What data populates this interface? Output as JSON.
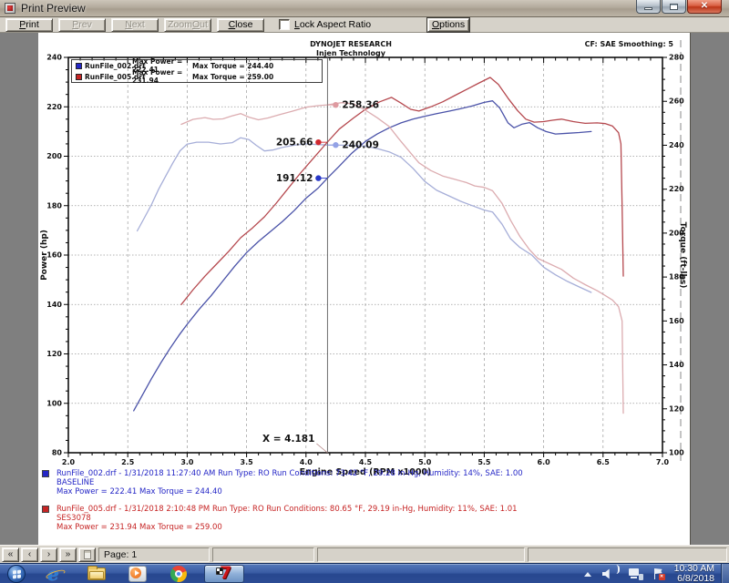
{
  "window": {
    "title": "Print Preview"
  },
  "toolbar": {
    "buttons": [
      {
        "label": "Print",
        "accel": 0,
        "enabled": true
      },
      {
        "label": "Prev",
        "accel": 0,
        "enabled": false
      },
      {
        "label": "Next",
        "accel": 0,
        "enabled": false
      },
      {
        "label": "Zoom Out",
        "accel": 5,
        "enabled": false
      },
      {
        "label": "Close",
        "accel": 0,
        "enabled": true
      }
    ],
    "lock_aspect_label": "Lock Aspect Ratio",
    "lock_aspect_checked": false,
    "options_label": "Options",
    "options_accel": 0
  },
  "page_header": {
    "line1": "DYNOJET RESEARCH",
    "line2": "Injen Technology",
    "right": "CF: SAE  Smoothing: 5"
  },
  "legend": {
    "rows": [
      {
        "color": "#2426c6",
        "file": "RunFile_002.drf",
        "power": "Max Power = 222.41",
        "torque": "Max Torque = 244.40"
      },
      {
        "color": "#c62424",
        "file": "RunFile_005.drf",
        "power": "Max Power = 231.94",
        "torque": "Max Torque = 259.00"
      }
    ]
  },
  "chart_data": {
    "type": "line",
    "title": "DYNOJET RESEARCH",
    "x_axis": {
      "label": "Engine Speed (RPM x1000)",
      "min": 2.0,
      "max": 7.0,
      "tick_labels": [
        "2.0",
        "2.5",
        "3.0",
        "3.5",
        "4.0",
        "4.5",
        "5.0",
        "5.5",
        "6.0",
        "6.5",
        "7.0"
      ],
      "minor_step": 0.1
    },
    "y_left": {
      "label": "Power (hp)",
      "min": 80,
      "max": 240,
      "tick_labels": [
        "240",
        "220",
        "200",
        "180",
        "160",
        "140",
        "120",
        "100",
        "80"
      ],
      "minor_step": 5
    },
    "y_right": {
      "label": "Torque (ft-lbs)",
      "min": 100,
      "max": 280,
      "tick_labels": [
        "280",
        "260",
        "240",
        "220",
        "200",
        "180",
        "160",
        "140",
        "120",
        "100"
      ],
      "minor_step": 5
    },
    "grid": true,
    "cursor": {
      "rpm": 4.181,
      "label": "X = 4.181"
    },
    "annotations": [
      {
        "label": "258.36",
        "axis": "right",
        "value": 258.36,
        "side": "right",
        "color": "#de9aa0"
      },
      {
        "label": "205.66",
        "axis": "left",
        "value": 205.66,
        "side": "left",
        "color": "#d02830"
      },
      {
        "label": "240.09",
        "axis": "right",
        "value": 240.09,
        "side": "right",
        "color": "#93a2e6"
      },
      {
        "label": "191.12",
        "axis": "left",
        "value": 191.12,
        "side": "left",
        "color": "#2838c8"
      }
    ],
    "series": [
      {
        "name": "power-runfile-002",
        "axis": "left",
        "color": "#4a52a8",
        "points": [
          [
            2.55,
            97
          ],
          [
            2.62,
            103
          ],
          [
            2.7,
            110
          ],
          [
            2.78,
            116.5
          ],
          [
            2.86,
            122.5
          ],
          [
            2.93,
            127.5
          ],
          [
            3.0,
            132
          ],
          [
            3.1,
            138
          ],
          [
            3.2,
            143.5
          ],
          [
            3.3,
            149.5
          ],
          [
            3.4,
            155.5
          ],
          [
            3.5,
            161
          ],
          [
            3.6,
            165.5
          ],
          [
            3.7,
            169.5
          ],
          [
            3.8,
            173.5
          ],
          [
            3.9,
            178
          ],
          [
            4.0,
            183
          ],
          [
            4.1,
            187
          ],
          [
            4.18,
            191.1
          ],
          [
            4.28,
            196
          ],
          [
            4.38,
            201
          ],
          [
            4.5,
            206
          ],
          [
            4.6,
            209
          ],
          [
            4.7,
            211.5
          ],
          [
            4.8,
            213.5
          ],
          [
            4.9,
            215
          ],
          [
            5.0,
            216.2
          ],
          [
            5.1,
            217.2
          ],
          [
            5.2,
            218.2
          ],
          [
            5.3,
            219.2
          ],
          [
            5.4,
            220.4
          ],
          [
            5.5,
            221.8
          ],
          [
            5.57,
            222.4
          ],
          [
            5.63,
            219.5
          ],
          [
            5.7,
            213.5
          ],
          [
            5.75,
            211.5
          ],
          [
            5.82,
            213
          ],
          [
            5.88,
            213.6
          ],
          [
            5.95,
            211.5
          ],
          [
            6.02,
            210
          ],
          [
            6.1,
            209
          ],
          [
            6.2,
            209.3
          ],
          [
            6.3,
            209.6
          ],
          [
            6.4,
            210
          ]
        ]
      },
      {
        "name": "torque-runfile-002",
        "axis": "right",
        "color": "#a6aed8",
        "points": [
          [
            2.58,
            201
          ],
          [
            2.64,
            207
          ],
          [
            2.7,
            213
          ],
          [
            2.76,
            220
          ],
          [
            2.82,
            226
          ],
          [
            2.88,
            232
          ],
          [
            2.94,
            237.5
          ],
          [
            3.0,
            240.5
          ],
          [
            3.08,
            241.4
          ],
          [
            3.18,
            241.4
          ],
          [
            3.28,
            240.6
          ],
          [
            3.38,
            241.2
          ],
          [
            3.45,
            243.4
          ],
          [
            3.52,
            242.6
          ],
          [
            3.58,
            240
          ],
          [
            3.65,
            237.4
          ],
          [
            3.72,
            237.8
          ],
          [
            3.8,
            239
          ],
          [
            3.9,
            240
          ],
          [
            4.0,
            240.6
          ],
          [
            4.1,
            240.3
          ],
          [
            4.18,
            240.1
          ],
          [
            4.3,
            240
          ],
          [
            4.4,
            239.9
          ],
          [
            4.5,
            239.6
          ],
          [
            4.6,
            238.5
          ],
          [
            4.7,
            237
          ],
          [
            4.8,
            234.5
          ],
          [
            4.9,
            229.5
          ],
          [
            5.0,
            223.5
          ],
          [
            5.1,
            219.5
          ],
          [
            5.2,
            217
          ],
          [
            5.3,
            214.5
          ],
          [
            5.4,
            212.5
          ],
          [
            5.5,
            210.5
          ],
          [
            5.57,
            209.6
          ],
          [
            5.65,
            204
          ],
          [
            5.72,
            197.5
          ],
          [
            5.8,
            193.5
          ],
          [
            5.9,
            190
          ],
          [
            6.0,
            184.5
          ],
          [
            6.1,
            181
          ],
          [
            6.2,
            178
          ],
          [
            6.3,
            175.5
          ],
          [
            6.4,
            173
          ]
        ]
      },
      {
        "name": "power-runfile-005",
        "axis": "left",
        "color": "#b5484e",
        "points": [
          [
            2.95,
            140
          ],
          [
            3.05,
            146
          ],
          [
            3.15,
            151.5
          ],
          [
            3.25,
            156.5
          ],
          [
            3.35,
            161.5
          ],
          [
            3.45,
            167
          ],
          [
            3.55,
            171
          ],
          [
            3.65,
            175.5
          ],
          [
            3.75,
            181
          ],
          [
            3.85,
            187
          ],
          [
            3.95,
            193
          ],
          [
            4.05,
            198.5
          ],
          [
            4.18,
            205.7
          ],
          [
            4.28,
            211
          ],
          [
            4.4,
            215.5
          ],
          [
            4.5,
            219
          ],
          [
            4.62,
            222
          ],
          [
            4.72,
            223.8
          ],
          [
            4.8,
            221.5
          ],
          [
            4.88,
            219
          ],
          [
            4.95,
            218.3
          ],
          [
            5.05,
            220
          ],
          [
            5.15,
            222
          ],
          [
            5.25,
            224.5
          ],
          [
            5.35,
            227
          ],
          [
            5.45,
            229.5
          ],
          [
            5.55,
            231.9
          ],
          [
            5.62,
            229
          ],
          [
            5.7,
            223.5
          ],
          [
            5.78,
            218.5
          ],
          [
            5.85,
            215
          ],
          [
            5.92,
            213.8
          ],
          [
            6.0,
            214
          ],
          [
            6.08,
            214.6
          ],
          [
            6.15,
            215
          ],
          [
            6.25,
            214
          ],
          [
            6.35,
            213.3
          ],
          [
            6.45,
            213.5
          ],
          [
            6.52,
            213.2
          ],
          [
            6.58,
            212.2
          ],
          [
            6.63,
            209.5
          ],
          [
            6.65,
            205
          ],
          [
            6.66,
            180
          ],
          [
            6.67,
            151.5
          ]
        ]
      },
      {
        "name": "torque-runfile-005",
        "axis": "right",
        "color": "#dcacb0",
        "points": [
          [
            2.95,
            249.5
          ],
          [
            3.05,
            251.8
          ],
          [
            3.15,
            252.6
          ],
          [
            3.22,
            251.8
          ],
          [
            3.3,
            252
          ],
          [
            3.38,
            253.4
          ],
          [
            3.45,
            254.4
          ],
          [
            3.52,
            252.8
          ],
          [
            3.6,
            251.6
          ],
          [
            3.68,
            252.4
          ],
          [
            3.78,
            254
          ],
          [
            3.88,
            255.4
          ],
          [
            4.0,
            257.3
          ],
          [
            4.1,
            258
          ],
          [
            4.18,
            258.4
          ],
          [
            4.3,
            259.4
          ],
          [
            4.4,
            258.8
          ],
          [
            4.5,
            256
          ],
          [
            4.6,
            252.5
          ],
          [
            4.7,
            248.5
          ],
          [
            4.78,
            243
          ],
          [
            4.86,
            237.8
          ],
          [
            4.95,
            232
          ],
          [
            5.05,
            228.5
          ],
          [
            5.15,
            226
          ],
          [
            5.25,
            224.5
          ],
          [
            5.35,
            223
          ],
          [
            5.42,
            221.5
          ],
          [
            5.5,
            220.8
          ],
          [
            5.57,
            219.3
          ],
          [
            5.65,
            213.5
          ],
          [
            5.72,
            206
          ],
          [
            5.8,
            198.5
          ],
          [
            5.88,
            192.5
          ],
          [
            5.95,
            188.5
          ],
          [
            6.05,
            186
          ],
          [
            6.15,
            183.5
          ],
          [
            6.25,
            179.5
          ],
          [
            6.35,
            176.5
          ],
          [
            6.45,
            173.8
          ],
          [
            6.52,
            171.5
          ],
          [
            6.58,
            169.5
          ],
          [
            6.63,
            166.5
          ],
          [
            6.66,
            160
          ],
          [
            6.67,
            118
          ]
        ]
      }
    ]
  },
  "footer_runs": [
    {
      "line1": "RunFile_002.drf - 1/31/2018 11:27:40 AM  Run Type: RO  Run Conditions: 73.42 °F, 29.28 in-Hg,  Humidity:  14%, SAE: 1.00",
      "line2": "BASELINE",
      "line3": "Max Power = 222.41  Max Torque = 244.40"
    },
    {
      "line1": "RunFile_005.drf - 1/31/2018 2:10:48 PM  Run Type: RO  Run Conditions: 80.65 °F, 29.19 in-Hg,  Humidity:  11%, SAE: 1.01",
      "line2": "SES3078",
      "line3": "Max Power = 231.94  Max Torque = 259.00"
    }
  ],
  "status_bar": {
    "nav": [
      "«",
      "‹",
      "›",
      "»"
    ],
    "page_label": "Page: 1"
  },
  "taskbar": {
    "icons": [
      "start",
      "internet-explorer",
      "file-explorer",
      "windows-media-player",
      "google-chrome",
      "winpep-7-active"
    ],
    "tray_icons": [
      "hidden-icons",
      "volume",
      "network",
      "action-center"
    ],
    "time": "10:30 AM",
    "date": "6/8/2018"
  }
}
